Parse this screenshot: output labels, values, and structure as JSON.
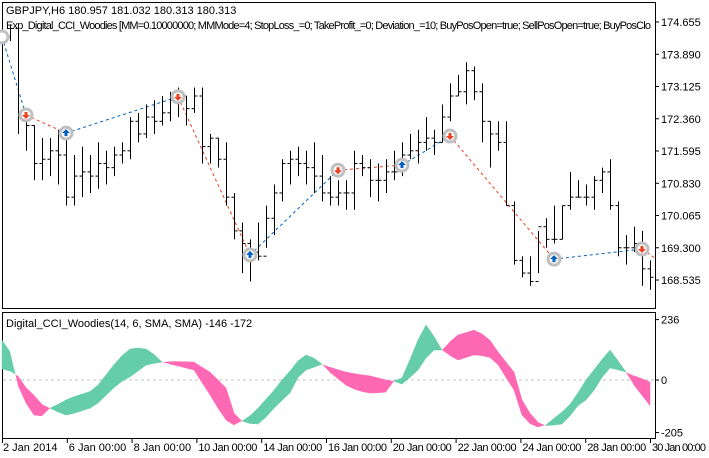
{
  "header": {
    "symbol_line": "GBPJPY,H6  180.957 181.032 180.313 180.313",
    "expert_line": "Exp_Digital_CCI_Woodies [MM=0.10000000; MMMode=4; StopLoss_=0; TakeProfit_=0; Deviation_=10; BuyPosOpen=true; SellPosOpen=true; BuyPosClo"
  },
  "indicator": {
    "label": "Digital_CCI_Woodies(14, 6, SMA, SMA) -146 -172"
  },
  "chart_data": [
    {
      "type": "bar",
      "name": "price",
      "ylim": [
        168.2,
        174.9
      ],
      "yticks": [
        "174.655",
        "173.890",
        "173.125",
        "172.360",
        "171.595",
        "170.830",
        "170.065",
        "169.300",
        "168.535"
      ],
      "bars_hlc": [
        [
          174.6,
          174.0,
          174.3
        ],
        [
          174.6,
          174.2,
          174.5
        ],
        [
          174.6,
          172.0,
          172.4
        ],
        [
          172.5,
          171.6,
          172.2
        ],
        [
          172.2,
          170.9,
          171.3
        ],
        [
          171.9,
          170.9,
          171.4
        ],
        [
          171.9,
          171.0,
          171.6
        ],
        [
          172.1,
          170.8,
          171.5
        ],
        [
          172.1,
          170.3,
          170.5
        ],
        [
          171.5,
          170.3,
          171.0
        ],
        [
          171.7,
          170.5,
          171.1
        ],
        [
          171.5,
          170.6,
          171.0
        ],
        [
          171.8,
          170.7,
          171.3
        ],
        [
          171.6,
          170.8,
          171.2
        ],
        [
          171.7,
          171.0,
          171.5
        ],
        [
          171.8,
          171.3,
          171.6
        ],
        [
          172.4,
          171.4,
          172.3
        ],
        [
          172.5,
          171.8,
          172.0
        ],
        [
          172.7,
          171.9,
          172.4
        ],
        [
          172.8,
          172.0,
          172.3
        ],
        [
          172.9,
          172.2,
          172.5
        ],
        [
          173.0,
          172.3,
          172.8
        ],
        [
          173.1,
          172.4,
          172.9
        ],
        [
          172.9,
          172.2,
          172.6
        ],
        [
          173.1,
          172.5,
          172.9
        ],
        [
          173.1,
          171.3,
          171.7
        ],
        [
          172.0,
          171.3,
          171.9
        ],
        [
          171.9,
          171.2,
          171.4
        ],
        [
          171.8,
          170.3,
          170.5
        ],
        [
          170.6,
          169.5,
          169.7
        ],
        [
          169.9,
          168.7,
          169.4
        ],
        [
          169.5,
          168.5,
          169.2
        ],
        [
          169.9,
          169.0,
          169.1
        ],
        [
          170.3,
          169.3,
          170.0
        ],
        [
          170.8,
          169.6,
          170.6
        ],
        [
          171.4,
          170.4,
          171.3
        ],
        [
          171.6,
          170.8,
          171.4
        ],
        [
          171.7,
          171.0,
          171.3
        ],
        [
          171.6,
          170.8,
          171.2
        ],
        [
          171.8,
          170.6,
          171.0
        ],
        [
          171.5,
          170.4,
          170.6
        ],
        [
          171.0,
          170.3,
          170.5
        ],
        [
          170.9,
          170.3,
          170.6
        ],
        [
          170.9,
          170.2,
          170.6
        ],
        [
          171.6,
          170.2,
          171.3
        ],
        [
          171.5,
          171.0,
          171.2
        ],
        [
          171.4,
          170.5,
          170.9
        ],
        [
          171.3,
          170.4,
          170.9
        ],
        [
          171.4,
          170.6,
          171.1
        ],
        [
          171.6,
          170.9,
          171.1
        ],
        [
          171.8,
          171.0,
          171.5
        ],
        [
          172.0,
          171.4,
          171.6
        ],
        [
          172.1,
          171.3,
          171.8
        ],
        [
          172.4,
          171.6,
          171.9
        ],
        [
          172.1,
          171.5,
          171.8
        ],
        [
          172.7,
          171.8,
          172.4
        ],
        [
          173.2,
          172.3,
          172.9
        ],
        [
          173.4,
          172.9,
          173.0
        ],
        [
          173.7,
          172.7,
          173.5
        ],
        [
          173.6,
          172.8,
          173.0
        ],
        [
          173.2,
          171.8,
          172.3
        ],
        [
          172.3,
          171.2,
          172.0
        ],
        [
          172.3,
          171.6,
          171.8
        ],
        [
          172.3,
          170.3,
          170.3
        ],
        [
          170.4,
          168.9,
          169.0
        ],
        [
          169.1,
          168.6,
          168.7
        ],
        [
          169.1,
          168.4,
          168.5
        ],
        [
          169.7,
          168.7,
          169.8
        ],
        [
          170.0,
          169.3,
          169.5
        ],
        [
          170.3,
          169.4,
          169.5
        ],
        [
          170.3,
          169.5,
          170.3
        ],
        [
          171.1,
          170.2,
          170.5
        ],
        [
          170.9,
          170.5,
          170.5
        ],
        [
          170.8,
          170.3,
          170.5
        ],
        [
          171.0,
          170.2,
          170.9
        ],
        [
          171.2,
          170.6,
          171.1
        ],
        [
          171.4,
          170.2,
          170.3
        ],
        [
          170.4,
          169.1,
          169.3
        ],
        [
          169.6,
          168.9,
          169.3
        ],
        [
          169.8,
          169.2,
          169.4
        ],
        [
          169.7,
          168.4,
          168.8
        ],
        [
          169.0,
          168.3,
          168.6
        ]
      ],
      "signals": [
        {
          "bar": 0,
          "price": 174.3,
          "type": "buy"
        },
        {
          "bar": 3,
          "price": 172.45,
          "type": "sell"
        },
        {
          "bar": 8,
          "price": 172.02,
          "type": "buy"
        },
        {
          "bar": 22,
          "price": 172.88,
          "type": "sell"
        },
        {
          "bar": 31,
          "price": 169.13,
          "type": "buy"
        },
        {
          "bar": 42,
          "price": 171.14,
          "type": "sell"
        },
        {
          "bar": 50,
          "price": 171.26,
          "type": "buy"
        },
        {
          "bar": 56,
          "price": 171.95,
          "type": "sell"
        },
        {
          "bar": 69,
          "price": 169.03,
          "type": "buy"
        },
        {
          "bar": 80,
          "price": 169.27,
          "type": "sell"
        }
      ],
      "colors": {
        "bar": "#000000",
        "buy": "#0060C0",
        "sell": "#F04020",
        "marker_ring": "#C0C0C0"
      }
    },
    {
      "type": "area",
      "name": "Digital_CCI_Woodies",
      "ylim": [
        -205,
        236
      ],
      "yticks": [
        "236",
        "0",
        "-205"
      ],
      "zero_line": true,
      "series": [
        {
          "values": [
            156,
            110,
            -20,
            -90,
            -137,
            -140,
            -110,
            -95,
            -78,
            -65,
            -55,
            -45,
            -20,
            20,
            60,
            95,
            121,
            125,
            121,
            100,
            70,
            62,
            55,
            47,
            39,
            -10,
            -58,
            -110,
            -156,
            -176,
            -160,
            -140,
            -110,
            -75,
            -40,
            0,
            35,
            75,
            98,
            85,
            62,
            30,
            5,
            -20,
            -35,
            -45,
            -51,
            -50,
            -47,
            -4,
            8,
            80,
            156,
            215,
            170,
            117,
            95,
            78,
            88,
            98,
            95,
            88,
            60,
            10,
            -39,
            -137,
            -170,
            -184,
            -175,
            -150,
            -125,
            -95,
            -50,
            0,
            40,
            80,
            117,
            75,
            31,
            -20,
            -60,
            -100
          ]
        },
        {
          "values": [
            43,
            35,
            15,
            -30,
            -60,
            -95,
            -110,
            -125,
            -137,
            -130,
            -120,
            -110,
            -90,
            -60,
            -30,
            -5,
            12,
            35,
            58,
            65,
            70,
            72,
            72,
            71,
            70,
            50,
            31,
            0,
            -31,
            -129,
            -160,
            -170,
            -172,
            -145,
            -110,
            -80,
            -50,
            10,
            39,
            50,
            62,
            50,
            40,
            31,
            25,
            20,
            16,
            8,
            0,
            -4,
            -16,
            10,
            39,
            86,
            117,
            117,
            150,
            176,
            185,
            195,
            180,
            155,
            110,
            70,
            31,
            -78,
            -130,
            -165,
            -178,
            -176,
            -172,
            -140,
            -100,
            -78,
            -40,
            10,
            47,
            40,
            31,
            16,
            5,
            -8
          ]
        }
      ],
      "colors": {
        "up": "#66CDAA",
        "down": "#FF69B4",
        "zero": "#C0C0C0"
      }
    }
  ],
  "x_axis": {
    "tick_labels": [
      "2 Jan 2014",
      "6 Jan 00:00",
      "8 Jan 00:00",
      "10 Jan 00:00",
      "14 Jan 00:00",
      "16 Jan 00:00",
      "20 Jan 00:00",
      "22 Jan 00:00",
      "24 Jan 00:00",
      "28 Jan 00:00",
      "30 Jan 00:00"
    ]
  }
}
